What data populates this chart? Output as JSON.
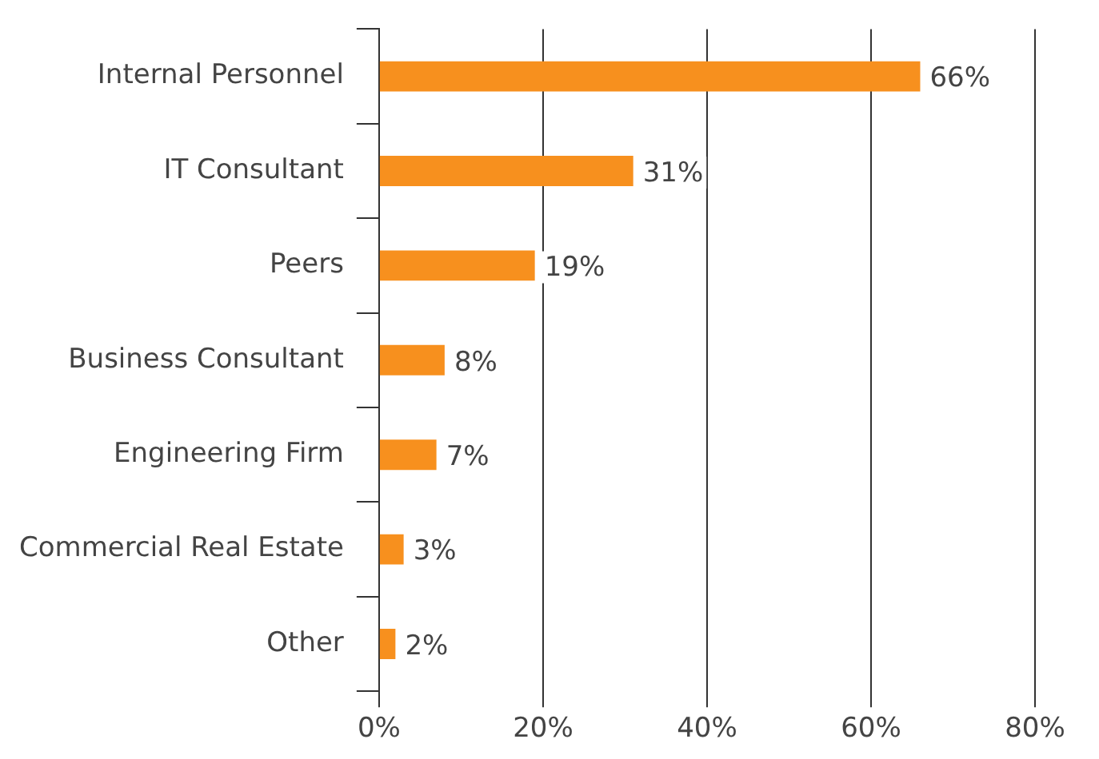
{
  "chart_data": {
    "type": "bar",
    "orientation": "horizontal",
    "categories": [
      "Internal Personnel",
      "IT Consultant",
      "Peers",
      "Business Consultant",
      "Engineering Firm",
      "Commercial Real Estate",
      "Other"
    ],
    "values": [
      66,
      31,
      19,
      8,
      7,
      3,
      2
    ],
    "value_labels": [
      "66%",
      "31%",
      "19%",
      "8%",
      "7%",
      "3%",
      "2%"
    ],
    "color": "#f7901e",
    "xlim": [
      0,
      80
    ],
    "xticks": [
      {
        "value": 0,
        "label": "0%"
      },
      {
        "value": 20,
        "label": "20%"
      },
      {
        "value": 40,
        "label": "40%"
      },
      {
        "value": 60,
        "label": "60%"
      },
      {
        "value": 80,
        "label": "80%"
      }
    ],
    "grid": "x",
    "legend": false
  }
}
